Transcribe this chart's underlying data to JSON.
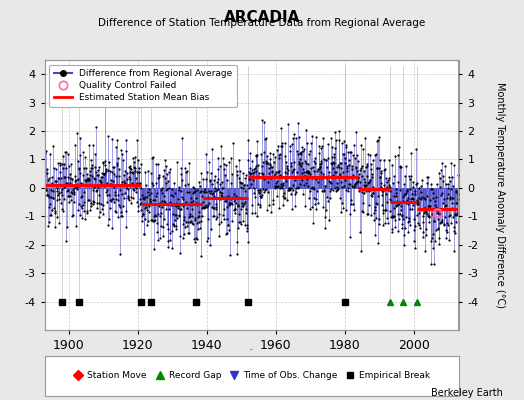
{
  "title": "ARCADIA",
  "subtitle": "Difference of Station Temperature Data from Regional Average",
  "ylabel_right": "Monthly Temperature Anomaly Difference (°C)",
  "xlim": [
    1893,
    2013
  ],
  "ylim": [
    -5,
    4.5
  ],
  "ylim_main": [
    -4.3,
    4.3
  ],
  "yticks": [
    -4,
    -3,
    -2,
    -1,
    0,
    1,
    2,
    3,
    4
  ],
  "xticks": [
    1900,
    1920,
    1940,
    1960,
    1980,
    2000
  ],
  "background_color": "#e8e8e8",
  "plot_bg_color": "#ffffff",
  "data_color": "#4444cc",
  "dot_color": "#000000",
  "bias_color": "#ff0000",
  "berkeley_earth_text": "Berkeley Earth",
  "segment_biases": [
    {
      "x_start": 1893,
      "x_end": 1907,
      "bias": 0.1
    },
    {
      "x_start": 1907,
      "x_end": 1913,
      "bias": 0.1
    },
    {
      "x_start": 1913,
      "x_end": 1921,
      "bias": 0.1
    },
    {
      "x_start": 1921,
      "x_end": 1924,
      "bias": -0.55
    },
    {
      "x_start": 1924,
      "x_end": 1937,
      "bias": -0.55
    },
    {
      "x_start": 1937,
      "x_end": 1939,
      "bias": -0.55
    },
    {
      "x_start": 1939,
      "x_end": 1952,
      "bias": -0.35
    },
    {
      "x_start": 1952,
      "x_end": 1984,
      "bias": 0.4
    },
    {
      "x_start": 1984,
      "x_end": 1993,
      "bias": -0.05
    },
    {
      "x_start": 1993,
      "x_end": 1997,
      "bias": -0.5
    },
    {
      "x_start": 1997,
      "x_end": 2001,
      "bias": -0.5
    },
    {
      "x_start": 2001,
      "x_end": 2013,
      "bias": -0.75
    }
  ],
  "empirical_breaks": [
    1898,
    1903,
    1921,
    1924,
    1937,
    1952,
    1980
  ],
  "record_gaps": [
    1993,
    1997,
    2001
  ],
  "time_of_obs_changes": [],
  "station_moves": [],
  "qc_failed_x": [
    2007
  ],
  "qc_failed_y": [
    -0.9
  ],
  "seed": 42,
  "marker_y": -4.0
}
